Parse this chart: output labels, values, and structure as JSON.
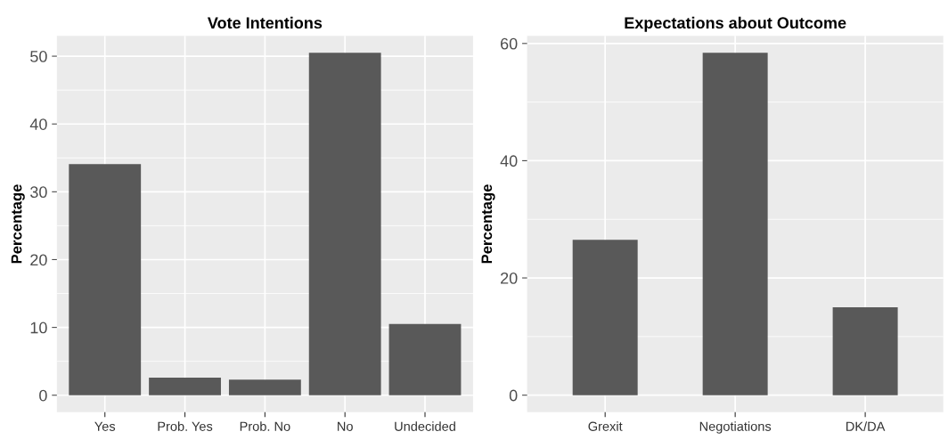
{
  "chart_data": [
    {
      "type": "bar",
      "title": "Vote Intentions",
      "ylabel": "Percentage",
      "categories": [
        "Yes",
        "Prob. Yes",
        "Prob. No",
        "No",
        "Undecided"
      ],
      "values": [
        34.1,
        2.6,
        2.3,
        50.5,
        10.5
      ],
      "color": "#595959",
      "ylim": [
        -2.5,
        53
      ],
      "yticks": [
        0,
        10,
        20,
        30,
        40,
        50
      ],
      "grid": true
    },
    {
      "type": "bar",
      "title": "Expectations about Outcome",
      "ylabel": "Percentage",
      "categories": [
        "Grexit",
        "Negotiations",
        "DK/DA"
      ],
      "values": [
        26.5,
        58.4,
        15.0
      ],
      "color": "#595959",
      "ylim": [
        -2.9,
        61.3
      ],
      "yticks": [
        0,
        20,
        40,
        60
      ],
      "grid": true
    }
  ]
}
